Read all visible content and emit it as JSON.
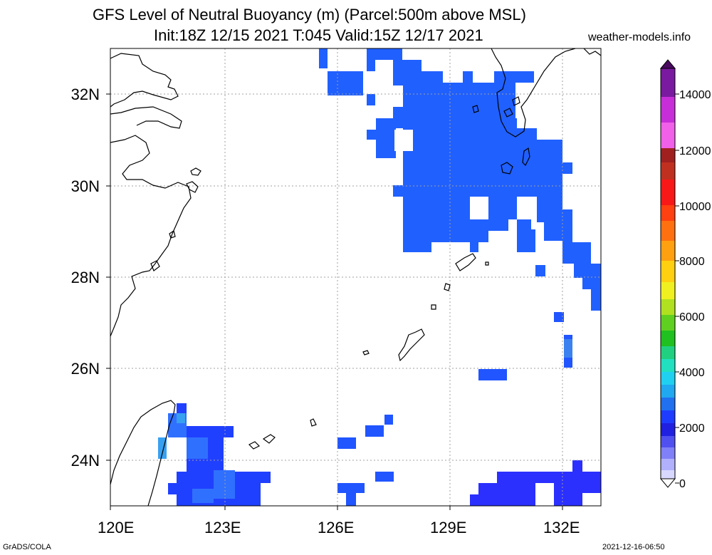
{
  "header": {
    "title_line1": "GFS Level of Neutral Buoyancy (m) (Parcel:500m above MSL)",
    "title_line2": "Init:18Z 12/15 2021 T:045 Valid:15Z 12/17 2021",
    "site": "weather-models.info"
  },
  "footer": {
    "credit": "GrADS/COLA",
    "timestamp": "2021-12-16-06:50"
  },
  "map": {
    "lon_labels": [
      "120E",
      "123E",
      "126E",
      "129E",
      "132E"
    ],
    "lat_labels": [
      "32N",
      "30N",
      "28N",
      "26N",
      "24N"
    ],
    "colorbar_labels": [
      "14000",
      "12000",
      "10000",
      "8000",
      "6000",
      "4000",
      "2000",
      "0"
    ],
    "colors": {
      "field_dark_blue": "#1e3cff",
      "field_blue": "#2a6aff",
      "field_light_blue": "#2f8cf2",
      "field_teal": "#33aaee",
      "coastline": "#000000",
      "grid": "#999999"
    }
  }
}
